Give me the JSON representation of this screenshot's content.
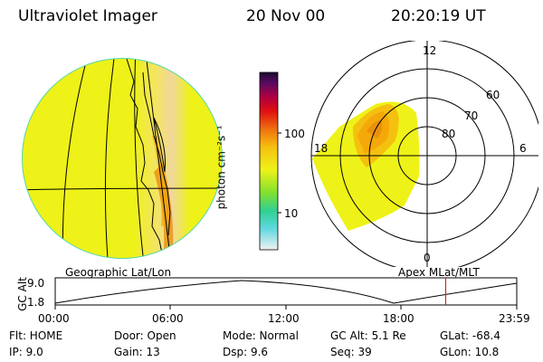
{
  "header": {
    "title": "Ultraviolet Imager",
    "date": "20 Nov 00",
    "time": "20:20:19 UT"
  },
  "colorbar": {
    "unit_label": "photon cm⁻²s⁻¹",
    "ticks": [
      "100",
      "10"
    ]
  },
  "left_panel": {
    "caption": "Geographic Lat/Lon"
  },
  "right_panel": {
    "caption": "Apex MLat/MLT",
    "mlt_labels": {
      "top": "12",
      "left": "18",
      "right": "6",
      "bottom": "0"
    },
    "lat_labels": [
      "60",
      "70",
      "80"
    ]
  },
  "altitude_plot": {
    "ylabel": "GC Alt",
    "yticks": [
      "9.0",
      "1.8"
    ],
    "xticks": [
      "00:00",
      "06:00",
      "12:00",
      "18:00",
      "23:59"
    ],
    "current_time_fraction": 0.846
  },
  "info": {
    "flt": "Flt: HOME",
    "ip": "IP:  9.0",
    "door": "Door: Open",
    "gain": "Gain: 13",
    "mode": "Mode: Normal",
    "dsp": "Dsp:     9.6",
    "gcalt": "GC Alt: 5.1 Re",
    "seq": "Seq: 39",
    "glat": "GLat: -68.4",
    "glon": "GLon:  10.8"
  },
  "colors": {
    "field": "#eef218",
    "orange": "#f5a80a",
    "dark_orange": "#e8900a",
    "rim": "#54d7a8",
    "marker": "#e02020"
  }
}
